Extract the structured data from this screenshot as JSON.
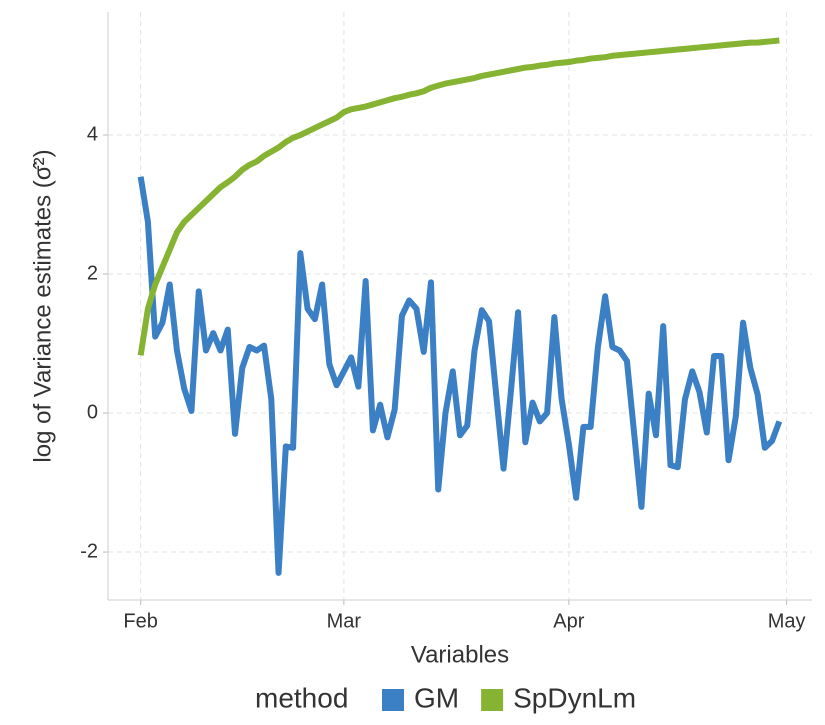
{
  "chart_data": {
    "type": "line",
    "x_label": "Variables",
    "y_label": "log of Variance estimates (σ̂²)",
    "legend_title": "method",
    "legend": "bottom",
    "grid": true,
    "x": [
      0,
      1,
      2,
      3,
      4,
      5,
      6,
      7,
      8,
      9,
      10,
      11,
      12,
      13,
      14,
      15,
      16,
      17,
      18,
      19,
      20,
      21,
      22,
      23,
      24,
      25,
      26,
      27,
      28,
      29,
      30,
      31,
      32,
      33,
      34,
      35,
      36,
      37,
      38,
      39,
      40,
      41,
      42,
      43,
      44,
      45,
      46,
      47,
      48,
      49,
      50,
      51,
      52,
      53,
      54,
      55,
      56,
      57,
      58,
      59,
      60,
      61,
      62,
      63,
      64,
      65,
      66,
      67,
      68,
      69,
      70,
      71,
      72,
      73,
      74,
      75,
      76,
      77,
      78,
      79,
      80,
      81,
      82,
      83,
      84,
      85,
      86,
      87,
      88
    ],
    "xlim": [
      -4.5,
      92.5
    ],
    "xticks": [
      {
        "value": 0,
        "label": "Feb"
      },
      {
        "value": 28,
        "label": "Mar"
      },
      {
        "value": 59,
        "label": "Apr"
      },
      {
        "value": 89,
        "label": "May"
      }
    ],
    "ylim": [
      -2.69,
      5.77
    ],
    "yticks": [
      -2,
      0,
      2,
      4
    ],
    "series": [
      {
        "name": "GM",
        "color": "#3b7fc4",
        "values": [
          3.4,
          2.75,
          1.1,
          1.3,
          1.85,
          0.9,
          0.35,
          0.03,
          1.75,
          0.9,
          1.15,
          0.9,
          1.2,
          -0.3,
          0.65,
          0.95,
          0.9,
          0.97,
          0.2,
          -2.3,
          -0.48,
          -0.5,
          2.3,
          1.5,
          1.35,
          1.85,
          0.7,
          0.4,
          0.6,
          0.8,
          0.38,
          1.9,
          -0.25,
          0.12,
          -0.35,
          0.05,
          1.4,
          1.62,
          1.5,
          0.88,
          1.88,
          -1.1,
          0,
          0.6,
          -0.32,
          -0.18,
          0.9,
          1.48,
          1.32,
          0.25,
          -0.8,
          0.3,
          1.45,
          -0.42,
          0.15,
          -0.12,
          0,
          1.38,
          0.2,
          -0.45,
          -1.22,
          -0.2,
          -0.2,
          0.95,
          1.68,
          0.95,
          0.9,
          0.75,
          -0.3,
          -1.35,
          0.28,
          -0.32,
          1.25,
          -0.75,
          -0.78,
          0.2,
          0.6,
          0.3,
          -0.28,
          0.82,
          0.82,
          -0.68,
          -0.05,
          1.3,
          0.65,
          0.27,
          -0.5,
          -0.4,
          -0.12
        ]
      },
      {
        "name": "SpDynLm",
        "color": "#86b332",
        "values": [
          0.83,
          1.5,
          1.85,
          2.1,
          2.35,
          2.6,
          2.75,
          2.85,
          2.95,
          3.05,
          3.15,
          3.25,
          3.32,
          3.4,
          3.5,
          3.57,
          3.62,
          3.7,
          3.76,
          3.82,
          3.9,
          3.96,
          4.0,
          4.05,
          4.1,
          4.15,
          4.2,
          4.25,
          4.33,
          4.37,
          4.39,
          4.41,
          4.44,
          4.47,
          4.5,
          4.53,
          4.55,
          4.58,
          4.6,
          4.63,
          4.68,
          4.71,
          4.74,
          4.76,
          4.78,
          4.8,
          4.82,
          4.85,
          4.87,
          4.89,
          4.91,
          4.93,
          4.95,
          4.97,
          4.98,
          5.0,
          5.01,
          5.03,
          5.04,
          5.05,
          5.07,
          5.08,
          5.1,
          5.11,
          5.12,
          5.14,
          5.15,
          5.16,
          5.17,
          5.18,
          5.19,
          5.2,
          5.21,
          5.22,
          5.23,
          5.24,
          5.25,
          5.26,
          5.27,
          5.28,
          5.29,
          5.3,
          5.31,
          5.32,
          5.33,
          5.33,
          5.34,
          5.35,
          5.36
        ]
      }
    ]
  }
}
